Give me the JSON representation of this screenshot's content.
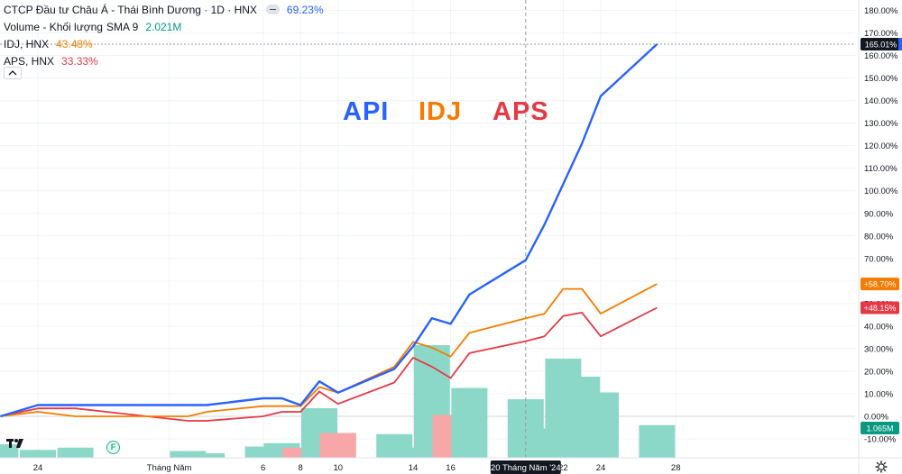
{
  "legend": {
    "main_title": "CTCP Đầu tư Châu Á - Thái Bình Dương · 1D · HNX",
    "main_value": "69.23%",
    "volume_label": "Volume - Khối lượng",
    "volume_sma": "SMA 9",
    "volume_value": "2.021M",
    "idj_label": "IDJ, HNX",
    "idj_value": "43.48%",
    "aps_label": "APS, HNX",
    "aps_value": "33.33%"
  },
  "big_labels": {
    "api": "API",
    "idj": "IDJ",
    "aps": "APS"
  },
  "colors": {
    "api": "#2962ff",
    "idj": "#f57c00",
    "aps": "#e53945",
    "vol_up": "#8cd8c8",
    "vol_down": "#f7a7a8",
    "grid": "#f0f3fa",
    "axis_text": "#131722",
    "current_label": "#131722",
    "volume_label": "#089981"
  },
  "chart_data": {
    "type": "line",
    "x": [
      "2024-04-22",
      "2024-04-24",
      "2024-04-26",
      "2024-05-02",
      "2024-05-03",
      "2024-05-06",
      "2024-05-07",
      "2024-05-08",
      "2024-05-09",
      "2024-05-10",
      "2024-05-13",
      "2024-05-14",
      "2024-05-15",
      "2024-05-16",
      "2024-05-17",
      "2024-05-20",
      "2024-05-21",
      "2024-05-22",
      "2024-05-23",
      "2024-05-24",
      "2024-05-27"
    ],
    "series": [
      {
        "name": "API",
        "values": [
          0,
          5,
          5,
          5,
          5,
          8,
          8,
          5,
          15.5,
          10.5,
          21,
          31,
          43.5,
          41,
          54,
          69.23,
          85,
          103,
          121,
          142,
          165.01
        ]
      },
      {
        "name": "IDJ",
        "values": [
          0,
          2,
          0,
          0,
          2,
          4.5,
          4.5,
          4.5,
          13,
          10.5,
          22,
          33,
          30.5,
          26.5,
          37,
          43.48,
          45.5,
          56.5,
          56.5,
          45.5,
          58.7
        ]
      },
      {
        "name": "APS",
        "values": [
          0,
          3.5,
          3.5,
          -2,
          -2,
          0,
          2,
          2,
          11,
          5.5,
          15,
          26,
          22,
          17,
          28,
          33.33,
          35.5,
          44.5,
          46,
          35.5,
          48.15
        ]
      }
    ],
    "volume_relative": [
      {
        "x": "2024-04-22",
        "height": 0.12,
        "up": true
      },
      {
        "x": "2024-04-24",
        "height": 0.07,
        "up": true
      },
      {
        "x": "2024-04-26",
        "height": 0.09,
        "up": true
      },
      {
        "x": "2024-05-02",
        "height": 0.06,
        "up": true
      },
      {
        "x": "2024-05-03",
        "height": 0.04,
        "up": true
      },
      {
        "x": "2024-05-06",
        "height": 0.1,
        "up": true
      },
      {
        "x": "2024-05-07",
        "height": 0.13,
        "up": true
      },
      {
        "x": "2024-05-08",
        "height": 0.09,
        "up": false
      },
      {
        "x": "2024-05-09",
        "height": 0.44,
        "up": true
      },
      {
        "x": "2024-05-10",
        "height": 0.22,
        "up": false
      },
      {
        "x": "2024-05-13",
        "height": 0.21,
        "up": true
      },
      {
        "x": "2024-05-14",
        "height": 0.09,
        "up": true
      },
      {
        "x": "2024-05-15",
        "height": 1.0,
        "up": true
      },
      {
        "x": "2024-05-16",
        "height": 0.38,
        "up": false
      },
      {
        "x": "2024-05-17",
        "height": 0.62,
        "up": true
      },
      {
        "x": "2024-05-20",
        "height": 0.52,
        "up": true
      },
      {
        "x": "2024-05-21",
        "height": 0.26,
        "up": true
      },
      {
        "x": "2024-05-22",
        "height": 0.88,
        "up": true
      },
      {
        "x": "2024-05-23",
        "height": 0.72,
        "up": true
      },
      {
        "x": "2024-05-24",
        "height": 0.58,
        "up": true
      },
      {
        "x": "2024-05-27",
        "height": 0.29,
        "up": true
      }
    ],
    "y_axis": {
      "unit": "%",
      "ylim": [
        -13,
        183
      ],
      "ticks": [
        -10,
        0,
        10,
        20,
        30,
        40,
        50,
        60,
        70,
        80,
        90,
        100,
        110,
        120,
        130,
        140,
        150,
        160,
        170,
        180
      ],
      "tick_labels": [
        "-10.00%",
        "0.00%",
        "10.00%",
        "20.00%",
        "30.00%",
        "40.00%",
        "50.00%",
        "60.00%",
        "70.00%",
        "80.00%",
        "90.00%",
        "100.00%",
        "110.00%",
        "120.00%",
        "130.00%",
        "140.00%",
        "150.00%",
        "160.00%",
        "170.00%",
        "180.00%"
      ]
    },
    "x_axis": {
      "ticks": [
        {
          "x": "2024-04-24",
          "label": "24"
        },
        {
          "x": "2024-05-01",
          "label": "Tháng Năm"
        },
        {
          "x": "2024-05-06",
          "label": "6"
        },
        {
          "x": "2024-05-08",
          "label": "8"
        },
        {
          "x": "2024-05-10",
          "label": "10"
        },
        {
          "x": "2024-05-14",
          "label": "14"
        },
        {
          "x": "2024-05-16",
          "label": "16"
        },
        {
          "x": "2024-05-22",
          "label": "22"
        },
        {
          "x": "2024-05-24",
          "label": "24"
        },
        {
          "x": "2024-05-28",
          "label": "28"
        }
      ],
      "crosshair": {
        "x": "2024-05-20",
        "label": "20 Tháng Năm '24"
      }
    },
    "last_value_labels": [
      {
        "series": "API",
        "value": 165.01,
        "text": "165.01%"
      },
      {
        "series": "IDJ",
        "value": 58.7,
        "text": "+58.70%"
      },
      {
        "series": "APS",
        "value": 48.15,
        "text": "+48.15%"
      },
      {
        "series": "Volume",
        "text": "1.065M"
      }
    ],
    "grid": true,
    "legend_position": "top-left"
  }
}
